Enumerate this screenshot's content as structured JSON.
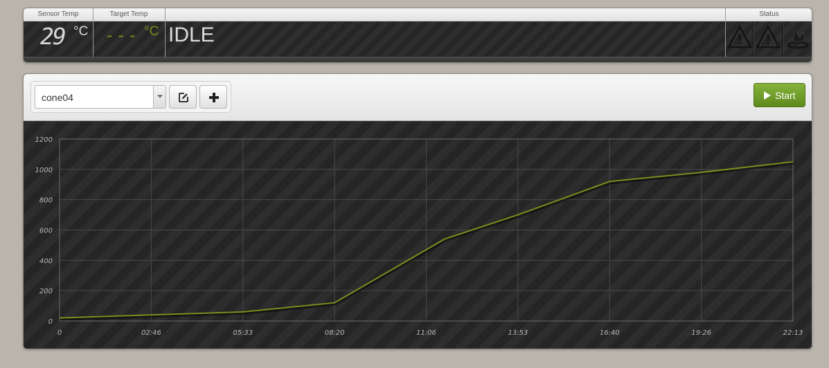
{
  "status": {
    "headers": {
      "sensor": "Sensor Temp",
      "target": "Target Temp",
      "status": "Status"
    },
    "sensor_temp": "29",
    "sensor_unit": "°C",
    "target_temp": "---",
    "target_unit": "°C",
    "state": "IDLE",
    "icons": [
      "warning-icon",
      "warning-icon",
      "burner-icon"
    ]
  },
  "toolbar": {
    "profile": "cone04",
    "edit_icon": "edit-icon",
    "add_icon": "plus-icon",
    "start_label": "Start"
  },
  "colors": {
    "accent": "#7a8f1c",
    "start_button": "#6f9c2a"
  },
  "chart_data": {
    "type": "line",
    "x_ticks": [
      "0",
      "02:46",
      "05:33",
      "08:20",
      "11:06",
      "13:53",
      "16:40",
      "19:26",
      "22:13"
    ],
    "y_ticks": [
      "0",
      "200",
      "400",
      "600",
      "800",
      "1000",
      "1200"
    ],
    "xlim": [
      0,
      80000
    ],
    "ylim": [
      0,
      1200
    ],
    "grid": true,
    "series": [
      {
        "color": "#7a8f1c",
        "x": [
          0,
          20000,
          30000,
          42000,
          50000,
          60000,
          70000,
          80000
        ],
        "y": [
          20,
          60,
          120,
          540,
          700,
          920,
          980,
          1050
        ]
      }
    ]
  }
}
